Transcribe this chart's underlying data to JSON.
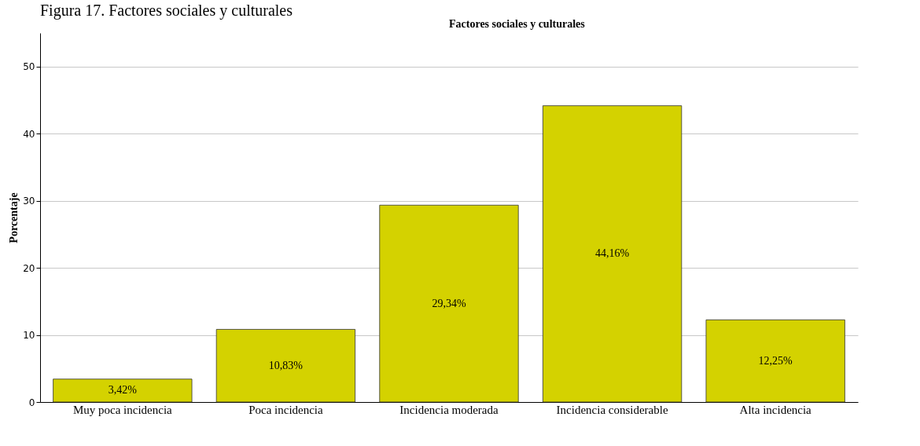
{
  "chart_data": {
    "type": "bar",
    "title": "Figura 17. Factores sociales y culturales",
    "subtitle": "Factores sociales y culturales",
    "ylabel": "Porcentaje",
    "categories": [
      "Muy poca incidencia",
      "Poca incidencia",
      "Incidencia moderada",
      "Incidencia considerable",
      "Alta incidencia"
    ],
    "values": [
      3.42,
      10.83,
      29.34,
      44.16,
      12.25
    ],
    "value_labels": [
      "3,42%",
      "10,83%",
      "29,34%",
      "44,16%",
      "12,25%"
    ],
    "color": "#d4d200",
    "ylim": [
      0,
      55
    ],
    "yticks": [
      0,
      10,
      20,
      30,
      40,
      50
    ],
    "grid": "y"
  }
}
